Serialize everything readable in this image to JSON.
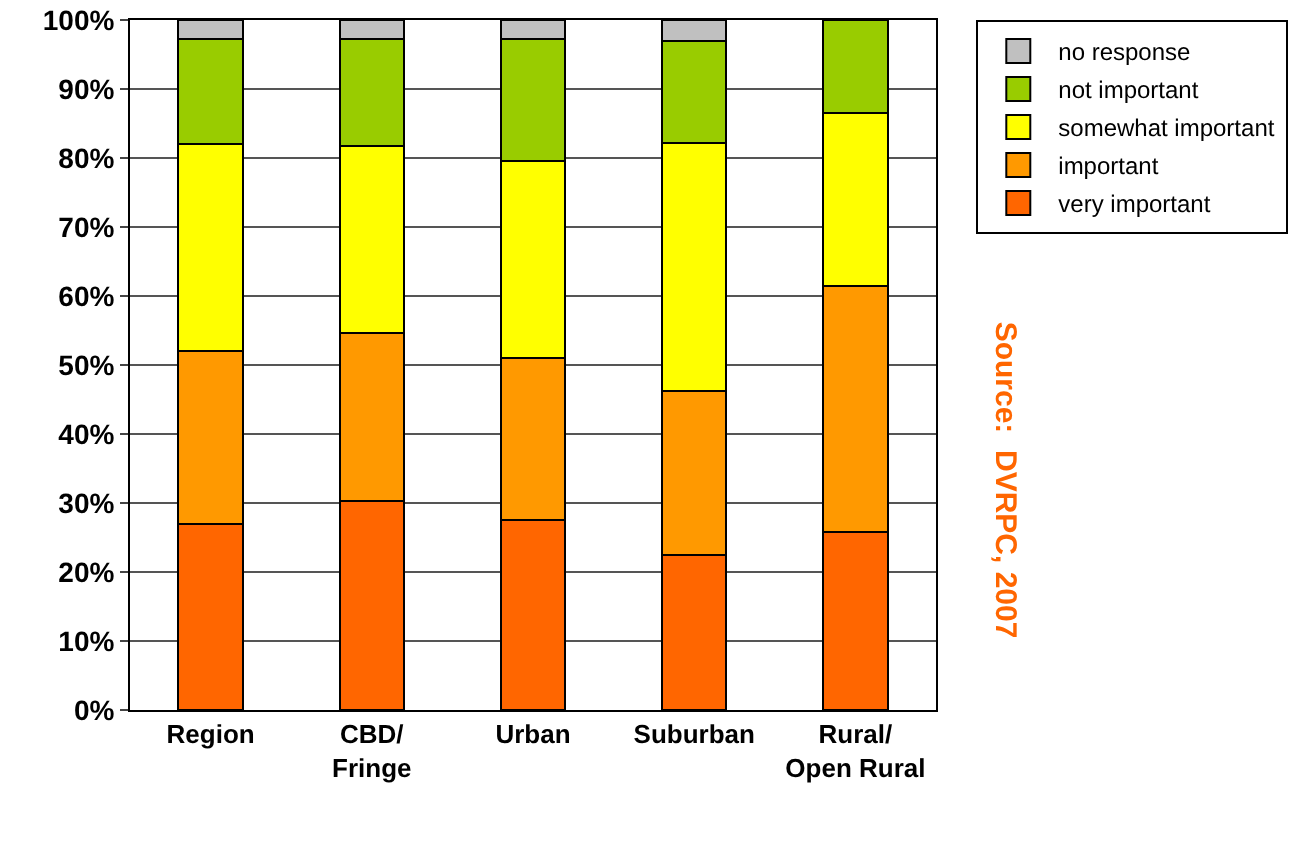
{
  "chart_data": {
    "type": "bar",
    "stacked": true,
    "categories": [
      "Region",
      "CBD/\nFringe",
      "Urban",
      "Suburban",
      "Rural/\nOpen Rural"
    ],
    "series": [
      {
        "name": "very important",
        "color": "#ff6600",
        "values": [
          27,
          30.3,
          27.6,
          22.5,
          25.8
        ]
      },
      {
        "name": "important",
        "color": "#ff9900",
        "values": [
          25,
          24.3,
          23.4,
          23.8,
          35.7
        ]
      },
      {
        "name": "somewhat important",
        "color": "#ffff00",
        "values": [
          30,
          27.1,
          28.5,
          35.9,
          25
        ]
      },
      {
        "name": "not important",
        "color": "#99cc00",
        "values": [
          15.3,
          15.6,
          17.8,
          14.8,
          13.5
        ]
      },
      {
        "name": "no response",
        "color": "#c0c0c0",
        "values": [
          2.7,
          2.7,
          2.7,
          3,
          0
        ]
      }
    ],
    "ylim": [
      0,
      100
    ],
    "yticks": [
      {
        "value": 0,
        "label": "0%"
      },
      {
        "value": 10,
        "label": "10%"
      },
      {
        "value": 20,
        "label": "20%"
      },
      {
        "value": 30,
        "label": "30%"
      },
      {
        "value": 40,
        "label": "40%"
      },
      {
        "value": 50,
        "label": "50%"
      },
      {
        "value": 60,
        "label": "60%"
      },
      {
        "value": 70,
        "label": "70%"
      },
      {
        "value": 80,
        "label": "80%"
      },
      {
        "value": 90,
        "label": "90%"
      },
      {
        "value": 100,
        "label": "100%"
      }
    ],
    "grid": "y",
    "legend": "top right",
    "annotations": [
      "Source:  DVRPC, 2007"
    ]
  }
}
